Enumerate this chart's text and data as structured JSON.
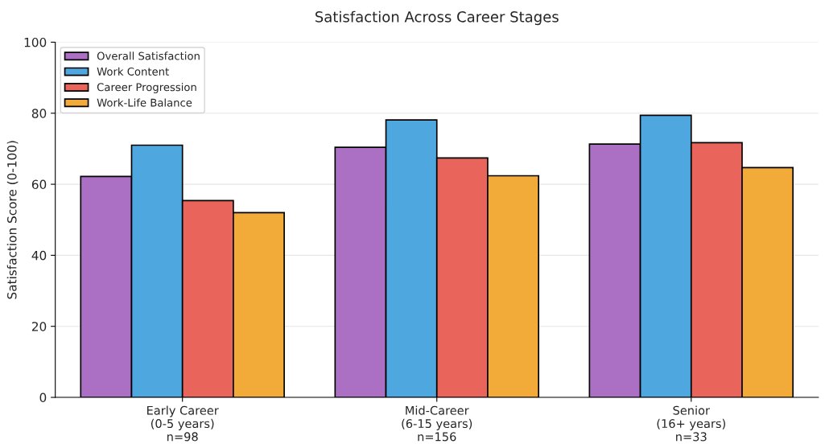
{
  "chart_data": {
    "type": "bar",
    "title": "Satisfaction Across Career Stages",
    "ylabel": "Satisfaction Score (0-100)",
    "categories": [
      "Early Career\n(0-5 years)\nn=98",
      "Mid-Career\n(6-15 years)\nn=156",
      "Senior\n(16+ years)\nn=33"
    ],
    "series": [
      {
        "name": "Overall Satisfaction",
        "color": "#ab70c3",
        "values": [
          62.2,
          70.4,
          71.3
        ]
      },
      {
        "name": "Work Content",
        "color": "#4fa7e0",
        "values": [
          71.0,
          78.1,
          79.4
        ]
      },
      {
        "name": "Career Progression",
        "color": "#e9645a",
        "values": [
          55.4,
          67.4,
          71.7
        ]
      },
      {
        "name": "Work-Life Balance",
        "color": "#f2aa38",
        "values": [
          52.0,
          62.4,
          64.7
        ]
      }
    ],
    "ylim": [
      0,
      100
    ],
    "yticks": [
      0,
      20,
      40,
      60,
      80,
      100
    ],
    "grid": "y",
    "legend": "top left"
  }
}
